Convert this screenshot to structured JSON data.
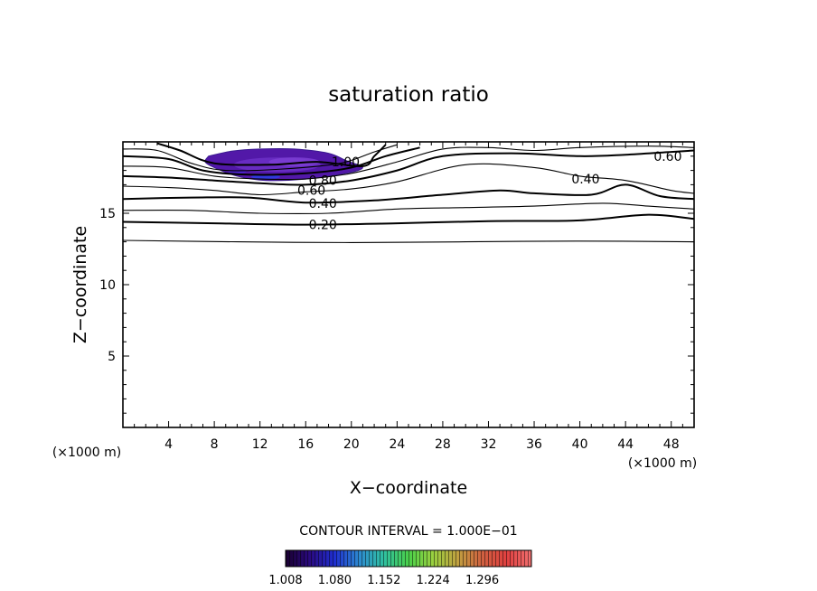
{
  "chart_data": {
    "type": "contour",
    "title": "saturation ratio",
    "xlabel": "X−coordinate",
    "ylabel": "Z−coordinate",
    "x_unit_left": "(×1000 m)",
    "x_unit_right": "(×1000 m)",
    "xlim": [
      0,
      50
    ],
    "ylim": [
      0,
      20
    ],
    "x_ticks": [
      4,
      8,
      12,
      16,
      20,
      24,
      28,
      32,
      36,
      40,
      44,
      48
    ],
    "x_tick_labels": [
      "4",
      "8",
      "12",
      "16",
      "20",
      "24",
      "28",
      "32",
      "36",
      "40",
      "44",
      "48"
    ],
    "y_ticks": [
      5,
      10,
      15
    ],
    "y_tick_labels": [
      "5",
      "10",
      "15"
    ],
    "contour_interval_text": "CONTOUR INTERVAL = 1.000E−01",
    "contour_labels": [
      {
        "text": "1.00",
        "x": 19.5,
        "z": 18.6
      },
      {
        "text": "0.80",
        "x": 17.5,
        "z": 17.3
      },
      {
        "text": "0.60",
        "x": 16.5,
        "z": 16.6
      },
      {
        "text": "0.40",
        "x": 17.5,
        "z": 15.7
      },
      {
        "text": "0.20",
        "x": 17.5,
        "z": 14.2
      },
      {
        "text": "0.60",
        "x": 47.7,
        "z": 19.0
      },
      {
        "text": "0.40",
        "x": 40.5,
        "z": 17.4
      }
    ],
    "contours": [
      {
        "level": 0.1,
        "thick": false,
        "points": [
          [
            0,
            13.1
          ],
          [
            10,
            13.0
          ],
          [
            20,
            12.95
          ],
          [
            30,
            13.0
          ],
          [
            40,
            13.05
          ],
          [
            50,
            13.0
          ]
        ]
      },
      {
        "level": 0.2,
        "thick": true,
        "points": [
          [
            0,
            14.4
          ],
          [
            8,
            14.3
          ],
          [
            16,
            14.2
          ],
          [
            24,
            14.3
          ],
          [
            32,
            14.45
          ],
          [
            40,
            14.5
          ],
          [
            46,
            14.9
          ],
          [
            50,
            14.6
          ]
        ]
      },
      {
        "level": 0.3,
        "thick": false,
        "points": [
          [
            0,
            15.2
          ],
          [
            6,
            15.2
          ],
          [
            12,
            15.0
          ],
          [
            18,
            15.0
          ],
          [
            24,
            15.3
          ],
          [
            30,
            15.4
          ],
          [
            36,
            15.5
          ],
          [
            42,
            15.7
          ],
          [
            46,
            15.5
          ],
          [
            50,
            15.3
          ]
        ]
      },
      {
        "level": 0.4,
        "thick": true,
        "points": [
          [
            0,
            16.0
          ],
          [
            6,
            16.1
          ],
          [
            11,
            16.1
          ],
          [
            16,
            15.75
          ],
          [
            22,
            15.9
          ],
          [
            28,
            16.3
          ],
          [
            33,
            16.6
          ],
          [
            36,
            16.4
          ],
          [
            41,
            16.3
          ],
          [
            44,
            17.0
          ],
          [
            47,
            16.2
          ],
          [
            50,
            16.0
          ]
        ]
      },
      {
        "level": 0.5,
        "thick": false,
        "points": [
          [
            0,
            16.9
          ],
          [
            4,
            16.8
          ],
          [
            8,
            16.6
          ],
          [
            12,
            16.3
          ],
          [
            16,
            16.5
          ],
          [
            20,
            16.7
          ],
          [
            24,
            17.2
          ],
          [
            30,
            18.4
          ],
          [
            36,
            18.2
          ],
          [
            40,
            17.6
          ],
          [
            44,
            17.3
          ],
          [
            48,
            16.6
          ],
          [
            50,
            16.4
          ]
        ]
      },
      {
        "level": 0.6,
        "thick": true,
        "points": [
          [
            0,
            17.6
          ],
          [
            4,
            17.5
          ],
          [
            8,
            17.3
          ],
          [
            12,
            17.1
          ],
          [
            16,
            17.0
          ],
          [
            20,
            17.3
          ],
          [
            24,
            18.0
          ],
          [
            28,
            19.0
          ],
          [
            34,
            19.2
          ],
          [
            40,
            19.0
          ],
          [
            44,
            19.1
          ],
          [
            48,
            19.3
          ],
          [
            50,
            19.4
          ]
        ]
      },
      {
        "level": 0.7,
        "thick": false,
        "points": [
          [
            0,
            18.3
          ],
          [
            4,
            18.2
          ],
          [
            8,
            17.6
          ],
          [
            12,
            17.4
          ],
          [
            16,
            17.4
          ],
          [
            20,
            17.8
          ],
          [
            24,
            18.6
          ],
          [
            28,
            19.5
          ],
          [
            32,
            19.6
          ],
          [
            36,
            19.4
          ],
          [
            40,
            19.6
          ],
          [
            46,
            19.7
          ],
          [
            50,
            19.6
          ]
        ]
      },
      {
        "level": 0.8,
        "thick": true,
        "points": [
          [
            0,
            19.0
          ],
          [
            4,
            18.8
          ],
          [
            7,
            18.0
          ],
          [
            11,
            17.7
          ],
          [
            16,
            17.8
          ],
          [
            20,
            18.2
          ],
          [
            23,
            19.0
          ],
          [
            26,
            19.6
          ]
        ]
      },
      {
        "level": 0.9,
        "thick": false,
        "points": [
          [
            0,
            19.5
          ],
          [
            3,
            19.4
          ],
          [
            6,
            18.5
          ],
          [
            9,
            18.0
          ],
          [
            14,
            18.1
          ],
          [
            19,
            18.5
          ],
          [
            22,
            19.3
          ],
          [
            24,
            19.8
          ]
        ]
      },
      {
        "level": 1.0,
        "thick": true,
        "points": [
          [
            3,
            19.9
          ],
          [
            5,
            19.4
          ],
          [
            8,
            18.5
          ],
          [
            13,
            18.4
          ],
          [
            17,
            18.6
          ],
          [
            21,
            18.3
          ],
          [
            22,
            19.0
          ],
          [
            23,
            19.8
          ]
        ]
      }
    ],
    "shaded_region": {
      "outline": [
        [
          7.5,
          19.0
        ],
        [
          7.2,
          18.6
        ],
        [
          8.0,
          18.2
        ],
        [
          10.0,
          17.6
        ],
        [
          12.5,
          17.3
        ],
        [
          16.0,
          17.4
        ],
        [
          19.5,
          17.8
        ],
        [
          21.0,
          18.2
        ],
        [
          19.5,
          18.7
        ],
        [
          18.0,
          19.2
        ],
        [
          15.0,
          19.5
        ],
        [
          12.0,
          19.5
        ],
        [
          9.5,
          19.35
        ]
      ],
      "colors": [
        "#5218a8",
        "#6a2fc4",
        "#7d3ed4",
        "#4a2ad8",
        "#2d3ee6"
      ]
    },
    "colorbar": {
      "min": 1.008,
      "max": 1.368,
      "tick_values": [
        1.008,
        1.08,
        1.152,
        1.224,
        1.296
      ],
      "tick_labels": [
        "1.008",
        "1.080",
        "1.152",
        "1.224",
        "1.296"
      ],
      "colors": [
        "#1a0030",
        "#2a0a80",
        "#1f2fd0",
        "#2d8ad0",
        "#30c0a0",
        "#4ad04a",
        "#9ad040",
        "#c0a040",
        "#d06040",
        "#e04040",
        "#f07070"
      ]
    }
  }
}
